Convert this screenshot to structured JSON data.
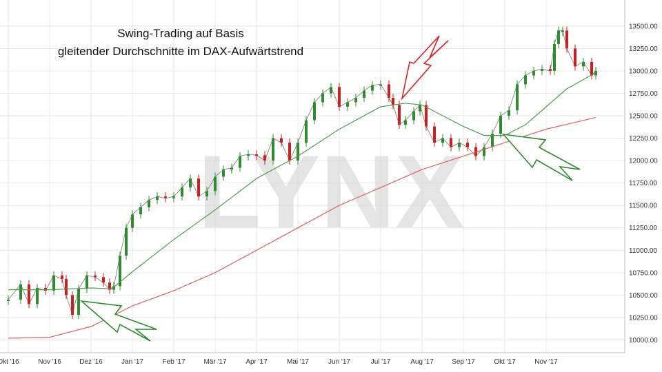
{
  "chart_data": {
    "type": "candlestick",
    "title_lines": [
      "Swing-Trading auf Basis",
      "gleitender Durchschnitte im DAX-Aufwärtstrend"
    ],
    "watermark": "LYNX",
    "x_ticks": [
      "Okt '16",
      "Nov '16",
      "Dez '16",
      "Jan '17",
      "Feb '17",
      "Mär '17",
      "Apr '17",
      "Mai '17",
      "Jun '17",
      "Jul '17",
      "Aug '17",
      "Sep '17",
      "Okt '17",
      "Nov '17"
    ],
    "y_ticks": [
      "10000.00",
      "10250.00",
      "10500.00",
      "10750.00",
      "11000.00",
      "11250.00",
      "11500.00",
      "11750.00",
      "12000.00",
      "12250.00",
      "12500.00",
      "12750.00",
      "13000.00",
      "13250.00",
      "13500.00"
    ],
    "ylim": [
      9950,
      13560
    ],
    "y_axis_position": "right",
    "grid": true,
    "x_range_months": [
      0,
      14.3
    ],
    "series": [
      {
        "kind": "price",
        "up_color": "#2e8b2e",
        "down_color": "#cc1f1f",
        "points": [
          {
            "x": 0.0,
            "y": 10450
          },
          {
            "x": 0.3,
            "y": 10620
          },
          {
            "x": 0.5,
            "y": 10400
          },
          {
            "x": 0.7,
            "y": 10580
          },
          {
            "x": 0.9,
            "y": 10550
          },
          {
            "x": 1.1,
            "y": 10720
          },
          {
            "x": 1.3,
            "y": 10680
          },
          {
            "x": 1.4,
            "y": 10500
          },
          {
            "x": 1.55,
            "y": 10280
          },
          {
            "x": 1.7,
            "y": 10570
          },
          {
            "x": 1.9,
            "y": 10720
          },
          {
            "x": 2.1,
            "y": 10700
          },
          {
            "x": 2.3,
            "y": 10640
          },
          {
            "x": 2.45,
            "y": 10560
          },
          {
            "x": 2.55,
            "y": 10600
          },
          {
            "x": 2.7,
            "y": 10940
          },
          {
            "x": 2.85,
            "y": 11250
          },
          {
            "x": 3.0,
            "y": 11400
          },
          {
            "x": 3.2,
            "y": 11480
          },
          {
            "x": 3.4,
            "y": 11560
          },
          {
            "x": 3.6,
            "y": 11600
          },
          {
            "x": 3.8,
            "y": 11580
          },
          {
            "x": 4.0,
            "y": 11600
          },
          {
            "x": 4.2,
            "y": 11700
          },
          {
            "x": 4.4,
            "y": 11800
          },
          {
            "x": 4.6,
            "y": 11600
          },
          {
            "x": 4.8,
            "y": 11660
          },
          {
            "x": 5.0,
            "y": 11820
          },
          {
            "x": 5.2,
            "y": 11900
          },
          {
            "x": 5.4,
            "y": 11920
          },
          {
            "x": 5.6,
            "y": 12050
          },
          {
            "x": 5.8,
            "y": 12070
          },
          {
            "x": 6.0,
            "y": 12060
          },
          {
            "x": 6.2,
            "y": 12000
          },
          {
            "x": 6.4,
            "y": 12250
          },
          {
            "x": 6.6,
            "y": 12200
          },
          {
            "x": 6.8,
            "y": 12000
          },
          {
            "x": 7.0,
            "y": 12200
          },
          {
            "x": 7.2,
            "y": 12450
          },
          {
            "x": 7.4,
            "y": 12650
          },
          {
            "x": 7.6,
            "y": 12750
          },
          {
            "x": 7.8,
            "y": 12820
          },
          {
            "x": 8.0,
            "y": 12600
          },
          {
            "x": 8.2,
            "y": 12650
          },
          {
            "x": 8.4,
            "y": 12700
          },
          {
            "x": 8.6,
            "y": 12780
          },
          {
            "x": 8.8,
            "y": 12840
          },
          {
            "x": 9.0,
            "y": 12850
          },
          {
            "x": 9.2,
            "y": 12700
          },
          {
            "x": 9.3,
            "y": 12620
          },
          {
            "x": 9.45,
            "y": 12400
          },
          {
            "x": 9.6,
            "y": 12450
          },
          {
            "x": 9.8,
            "y": 12550
          },
          {
            "x": 9.95,
            "y": 12620
          },
          {
            "x": 10.1,
            "y": 12380
          },
          {
            "x": 10.3,
            "y": 12200
          },
          {
            "x": 10.5,
            "y": 12250
          },
          {
            "x": 10.7,
            "y": 12150
          },
          {
            "x": 10.9,
            "y": 12200
          },
          {
            "x": 11.1,
            "y": 12150
          },
          {
            "x": 11.3,
            "y": 12050
          },
          {
            "x": 11.5,
            "y": 12150
          },
          {
            "x": 11.7,
            "y": 12300
          },
          {
            "x": 11.9,
            "y": 12500
          },
          {
            "x": 12.1,
            "y": 12560
          },
          {
            "x": 12.3,
            "y": 12850
          },
          {
            "x": 12.5,
            "y": 12950
          },
          {
            "x": 12.7,
            "y": 13000
          },
          {
            "x": 12.9,
            "y": 13020
          },
          {
            "x": 13.1,
            "y": 13000
          },
          {
            "x": 13.2,
            "y": 13300
          },
          {
            "x": 13.3,
            "y": 13450
          },
          {
            "x": 13.4,
            "y": 13450
          },
          {
            "x": 13.5,
            "y": 13250
          },
          {
            "x": 13.7,
            "y": 13050
          },
          {
            "x": 13.9,
            "y": 13100
          },
          {
            "x": 14.1,
            "y": 12950
          },
          {
            "x": 14.2,
            "y": 13000
          }
        ]
      },
      {
        "kind": "moving-average-short",
        "color": "#4a9e4a",
        "points": [
          {
            "x": 0.0,
            "y": 10560
          },
          {
            "x": 1.0,
            "y": 10560
          },
          {
            "x": 2.0,
            "y": 10580
          },
          {
            "x": 2.5,
            "y": 10570
          },
          {
            "x": 3.0,
            "y": 10760
          },
          {
            "x": 4.0,
            "y": 11120
          },
          {
            "x": 5.0,
            "y": 11450
          },
          {
            "x": 6.0,
            "y": 11800
          },
          {
            "x": 7.0,
            "y": 12050
          },
          {
            "x": 8.0,
            "y": 12350
          },
          {
            "x": 9.0,
            "y": 12600
          },
          {
            "x": 9.6,
            "y": 12640
          },
          {
            "x": 10.0,
            "y": 12620
          },
          {
            "x": 10.5,
            "y": 12500
          },
          {
            "x": 11.0,
            "y": 12380
          },
          {
            "x": 11.5,
            "y": 12280
          },
          {
            "x": 12.0,
            "y": 12280
          },
          {
            "x": 12.5,
            "y": 12400
          },
          {
            "x": 13.0,
            "y": 12600
          },
          {
            "x": 13.5,
            "y": 12800
          },
          {
            "x": 14.2,
            "y": 12980
          }
        ]
      },
      {
        "kind": "moving-average-long",
        "color": "#e06060",
        "points": [
          {
            "x": 0.0,
            "y": 10020
          },
          {
            "x": 1.0,
            "y": 10030
          },
          {
            "x": 2.0,
            "y": 10150
          },
          {
            "x": 3.0,
            "y": 10380
          },
          {
            "x": 4.0,
            "y": 10550
          },
          {
            "x": 5.0,
            "y": 10750
          },
          {
            "x": 6.0,
            "y": 11000
          },
          {
            "x": 7.0,
            "y": 11250
          },
          {
            "x": 8.0,
            "y": 11500
          },
          {
            "x": 9.0,
            "y": 11700
          },
          {
            "x": 10.0,
            "y": 11900
          },
          {
            "x": 11.0,
            "y": 12050
          },
          {
            "x": 12.0,
            "y": 12200
          },
          {
            "x": 13.0,
            "y": 12350
          },
          {
            "x": 14.2,
            "y": 12480
          }
        ]
      }
    ],
    "annotations": [
      {
        "shape": "zigzag-arrow",
        "color": "#2e8b2e",
        "points_to": "Dez '16",
        "direction": "up-left"
      },
      {
        "shape": "zigzag-arrow",
        "color": "#e02020",
        "points_to": "Jul '17",
        "direction": "down-left"
      },
      {
        "shape": "zigzag-arrow",
        "color": "#2e8b2e",
        "points_to": "Sep '17",
        "direction": "up-left"
      }
    ]
  }
}
